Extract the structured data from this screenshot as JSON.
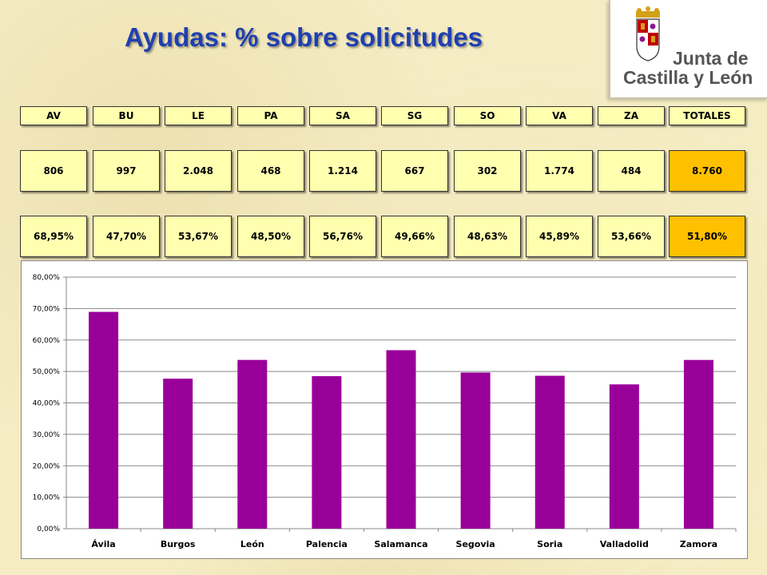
{
  "title": "Ayudas: % sobre solicitudes",
  "logo": {
    "line1": "Junta de",
    "line2": "Castilla y León"
  },
  "table": {
    "headers": [
      "AV",
      "BU",
      "LE",
      "PA",
      "SA",
      "SG",
      "SO",
      "VA",
      "ZA",
      "TOTALES"
    ],
    "counts": [
      "806",
      "997",
      "2.048",
      "468",
      "1.214",
      "667",
      "302",
      "1.774",
      "484",
      "8.760"
    ],
    "percents": [
      "68,95%",
      "47,70%",
      "53,67%",
      "48,50%",
      "56,76%",
      "49,66%",
      "48,63%",
      "45,89%",
      "53,66%",
      "51,80%"
    ]
  },
  "colors": {
    "bar": "#990099",
    "cell": "#ffffb0",
    "total": "#ffc000",
    "title": "#1f3fb0"
  },
  "chart_data": {
    "type": "bar",
    "categories": [
      "Ávila",
      "Burgos",
      "León",
      "Palencia",
      "Salamanca",
      "Segovia",
      "Soria",
      "Valladolid",
      "Zamora"
    ],
    "values": [
      68.95,
      47.7,
      53.67,
      48.5,
      56.76,
      49.66,
      48.63,
      45.89,
      53.66
    ],
    "ylim": [
      0,
      80
    ],
    "yticks": [
      "0,00%",
      "10,00%",
      "20,00%",
      "30,00%",
      "40,00%",
      "50,00%",
      "60,00%",
      "70,00%",
      "80,00%"
    ],
    "grid": true,
    "legend": "none"
  }
}
